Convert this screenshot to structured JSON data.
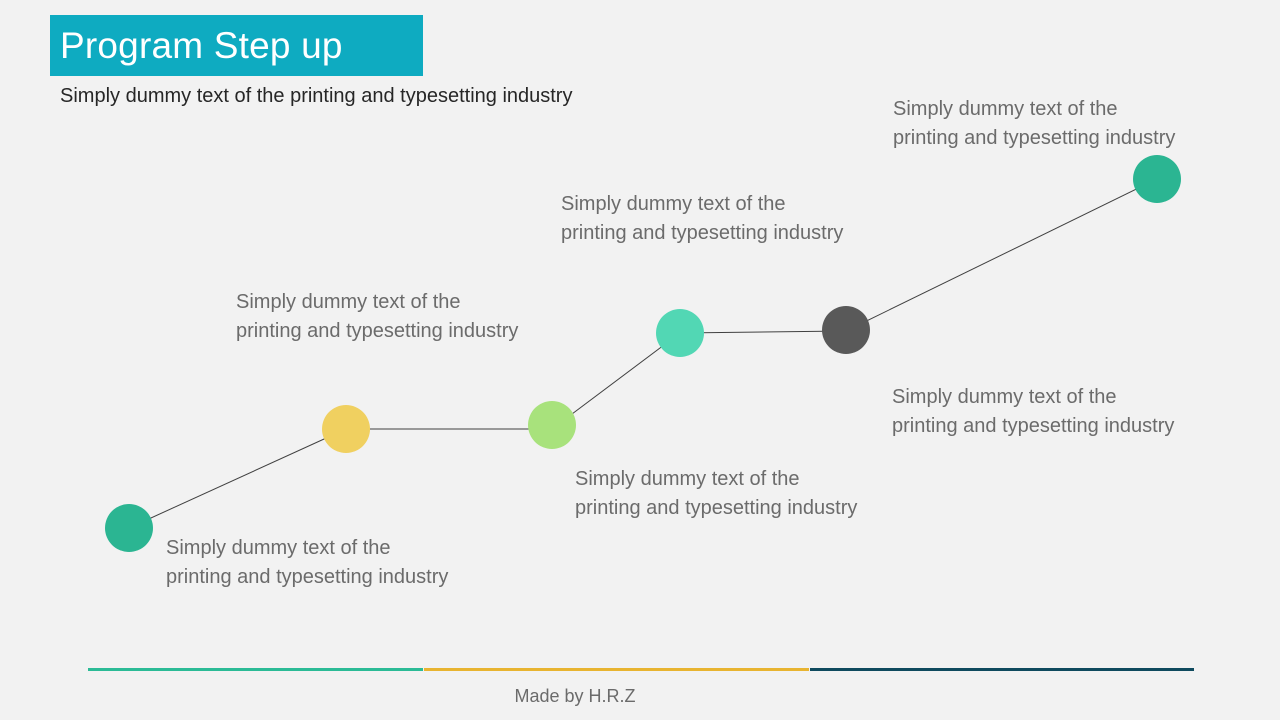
{
  "title": "Program Step up",
  "subtitle": "Simply dummy text of the printing and typesetting industry",
  "colors": {
    "title_bg": "#0eabc1",
    "background": "#f2f2f2",
    "connector": "#404040",
    "footer_segments": [
      "#2bbb96",
      "#e8b431",
      "#0f4a5e"
    ]
  },
  "steps": [
    {
      "color": "#2bb592",
      "label": "Simply dummy text of the printing and typesetting industry"
    },
    {
      "color": "#f0d060",
      "label": "Simply dummy text of the printing and typesetting industry"
    },
    {
      "color": "#a8e27c",
      "label": "Simply dummy text of the printing and typesetting industry"
    },
    {
      "color": "#52d7b4",
      "label": "Simply dummy text of the printing and typesetting industry"
    },
    {
      "color": "#595959",
      "label": "Simply dummy text of the printing and typesetting industry"
    },
    {
      "color": "#2bb592",
      "label": "Simply dummy text of the printing and typesetting industry"
    }
  ],
  "footer": {
    "credit": "Made by H.R.Z"
  }
}
